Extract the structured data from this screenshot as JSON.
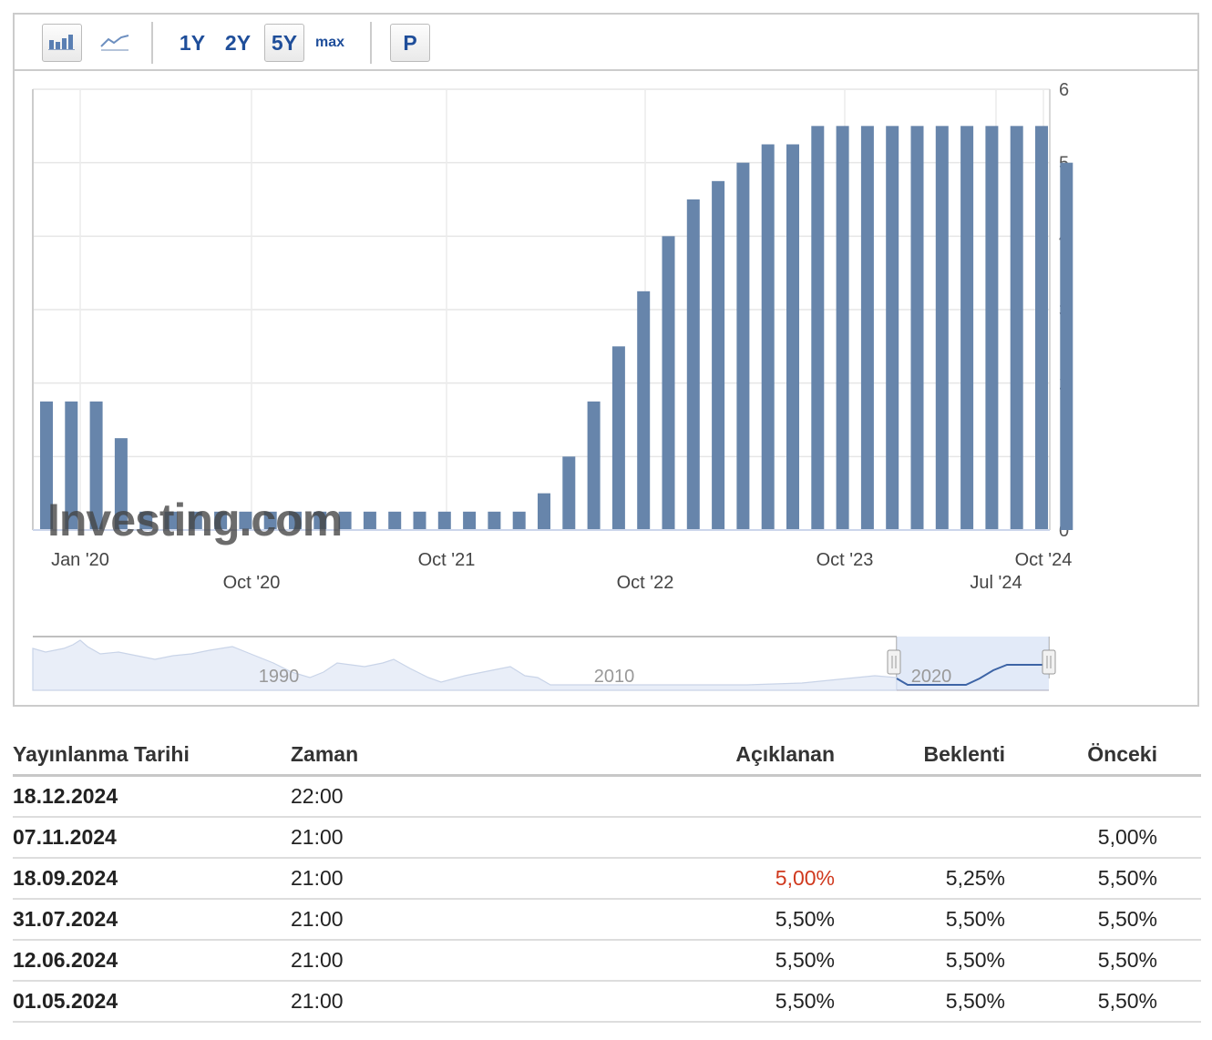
{
  "toolbar": {
    "icons": [
      "bar-chart-icon",
      "line-chart-icon"
    ],
    "ranges": [
      "1Y",
      "2Y",
      "5Y",
      "max"
    ],
    "active_range": "5Y",
    "p_button": "P"
  },
  "chart_data": {
    "type": "bar",
    "series": [
      {
        "values": [
          1.75,
          1.75,
          1.75,
          1.25,
          0.25,
          0.25,
          0.25,
          0.25,
          0.25,
          0.25,
          0.25,
          0.25,
          0.25,
          0.25,
          0.25,
          0.25,
          0.25,
          0.25,
          0.25,
          0.25,
          0.5,
          1.0,
          1.75,
          2.5,
          3.25,
          4.0,
          4.5,
          4.75,
          5.0,
          5.25,
          5.25,
          5.5,
          5.5,
          5.5,
          5.5,
          5.5,
          5.5,
          5.5,
          5.5,
          5.5,
          5.5,
          5.0
        ]
      }
    ],
    "ylim": [
      0,
      6
    ],
    "yticks": [
      "0",
      "1",
      "2",
      "3",
      "4",
      "5",
      "6"
    ],
    "xticks_row1": [
      "Jan '20",
      "Oct '21",
      "Oct '23",
      "Oct '24"
    ],
    "xticks_row2": [
      "Oct '20",
      "Oct '22",
      "Jul '24"
    ],
    "grid": true,
    "y_axis_side": "right",
    "bar_color": "#6785ab",
    "navigator": {
      "labels": [
        "1990",
        "2010",
        "2020"
      ]
    },
    "watermark": "Investing.com"
  },
  "table": {
    "headers": [
      "Yayınlanma Tarihi",
      "Zaman",
      "Açıklanan",
      "Beklenti",
      "Önceki"
    ],
    "rows": [
      {
        "date": "18.12.2024",
        "time": "22:00",
        "actual": "",
        "forecast": "",
        "previous": ""
      },
      {
        "date": "07.11.2024",
        "time": "21:00",
        "actual": "",
        "forecast": "",
        "previous": "5,00%"
      },
      {
        "date": "18.09.2024",
        "time": "21:00",
        "actual": "5,00%",
        "forecast": "5,25%",
        "previous": "5,50%"
      },
      {
        "date": "31.07.2024",
        "time": "21:00",
        "actual": "5,50%",
        "forecast": "5,50%",
        "previous": "5,50%"
      },
      {
        "date": "12.06.2024",
        "time": "21:00",
        "actual": "5,50%",
        "forecast": "5,50%",
        "previous": "5,50%"
      },
      {
        "date": "01.05.2024",
        "time": "21:00",
        "actual": "5,50%",
        "forecast": "5,50%",
        "previous": "5,50%"
      }
    ],
    "actual_highlight_color": "#d0391e"
  }
}
